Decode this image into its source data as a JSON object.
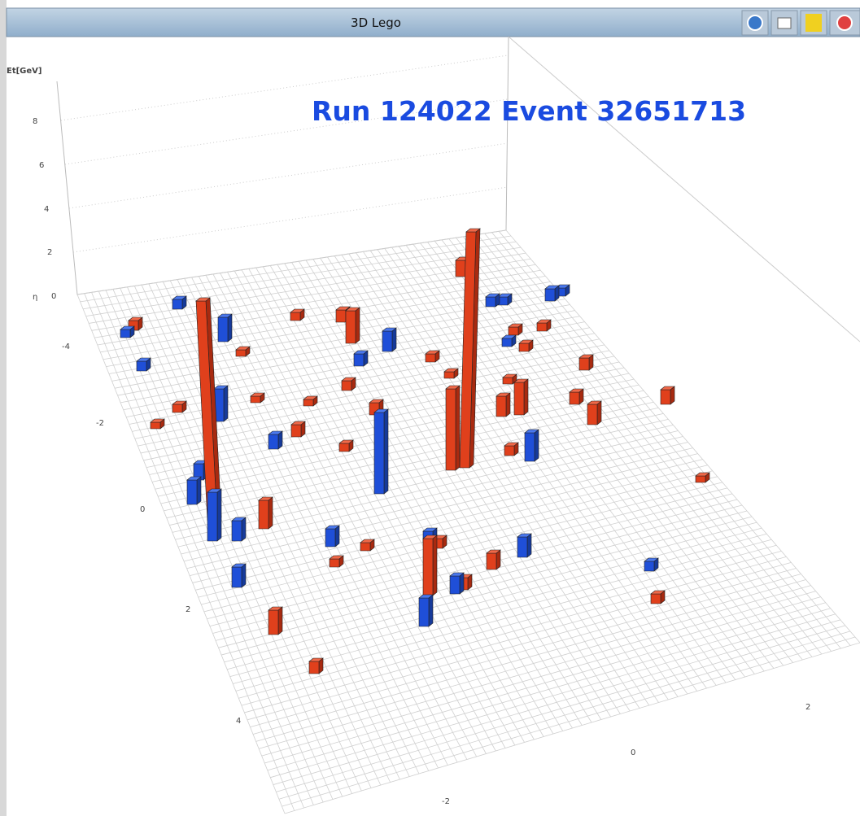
{
  "window": {
    "title": "3D Lego"
  },
  "annotation": "Run 124022  Event 32651713",
  "axes": {
    "et_label": "Et[GeV]",
    "et_ticks": [
      "8",
      "6",
      "4",
      "2",
      "0"
    ],
    "eta_label": "η",
    "eta_ticks": [
      "-4",
      "-2",
      "0",
      "2",
      "4"
    ],
    "phi_ticks": [
      "-2",
      "0",
      "2"
    ]
  }
}
